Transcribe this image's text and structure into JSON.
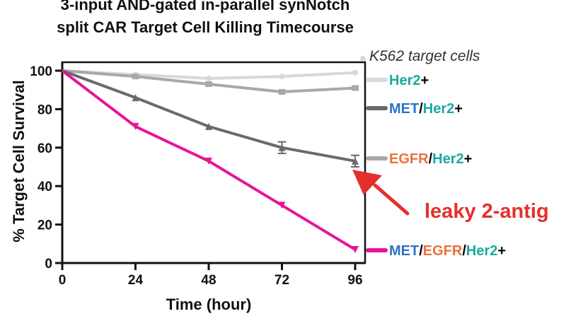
{
  "chart_data": {
    "type": "line",
    "title_lines": [
      "3-input AND-gated in-parallel synNotch",
      "split CAR Target Cell Killing Timecourse"
    ],
    "xlabel": "Time (hour)",
    "ylabel": "% Target Cell Survival",
    "x": [
      0,
      24,
      48,
      72,
      96
    ],
    "x_ticks": [
      "0",
      "24",
      "48",
      "72",
      "96"
    ],
    "y_ticks": [
      "0",
      "20",
      "40",
      "60",
      "80",
      "100"
    ],
    "xlim": [
      0,
      96
    ],
    "ylim": [
      0,
      100
    ],
    "legend_title": "K562 target cells",
    "series": [
      {
        "name": "Her2+",
        "values": [
          100,
          98,
          96,
          97,
          99
        ],
        "color": "#d8d8d8",
        "marker": "circle",
        "label_parts": [
          {
            "text": "Her2",
            "color": "#1aa9a1"
          },
          {
            "text": "+",
            "color": "#000000"
          }
        ]
      },
      {
        "name": "EGFR/Her2+",
        "values": [
          100,
          97,
          93,
          89,
          91
        ],
        "color": "#a8a8a8",
        "marker": "square",
        "label_parts": [
          {
            "text": "EGFR",
            "color": "#e8733a"
          },
          {
            "text": "/",
            "color": "#000000"
          },
          {
            "text": "Her2",
            "color": "#1aa9a1"
          },
          {
            "text": "+",
            "color": "#000000"
          }
        ]
      },
      {
        "name": "MET/Her2+",
        "values": [
          100,
          86,
          71,
          60,
          53
        ],
        "errors": [
          0,
          0,
          0,
          3,
          3
        ],
        "color": "#6a6a6a",
        "marker": "triangle",
        "label_parts": [
          {
            "text": "MET",
            "color": "#2a73c8"
          },
          {
            "text": "/",
            "color": "#000000"
          },
          {
            "text": "Her2",
            "color": "#1aa9a1"
          },
          {
            "text": "+",
            "color": "#000000"
          }
        ]
      },
      {
        "name": "MET/EGFR/Her2+",
        "values": [
          100,
          71,
          53,
          30,
          7
        ],
        "color": "#e8149a",
        "marker": "triangle-down",
        "label_parts": [
          {
            "text": "MET",
            "color": "#2a73c8"
          },
          {
            "text": "/",
            "color": "#000000"
          },
          {
            "text": "EGFR",
            "color": "#e8733a"
          },
          {
            "text": "/",
            "color": "#000000"
          },
          {
            "text": "Her2",
            "color": "#1aa9a1"
          },
          {
            "text": "+",
            "color": "#000000"
          }
        ]
      }
    ],
    "annotation": {
      "text": "leaky 2-antig",
      "color": "#e62e2e",
      "points_to_series": "MET/Her2+",
      "points_to_x": 96
    }
  }
}
